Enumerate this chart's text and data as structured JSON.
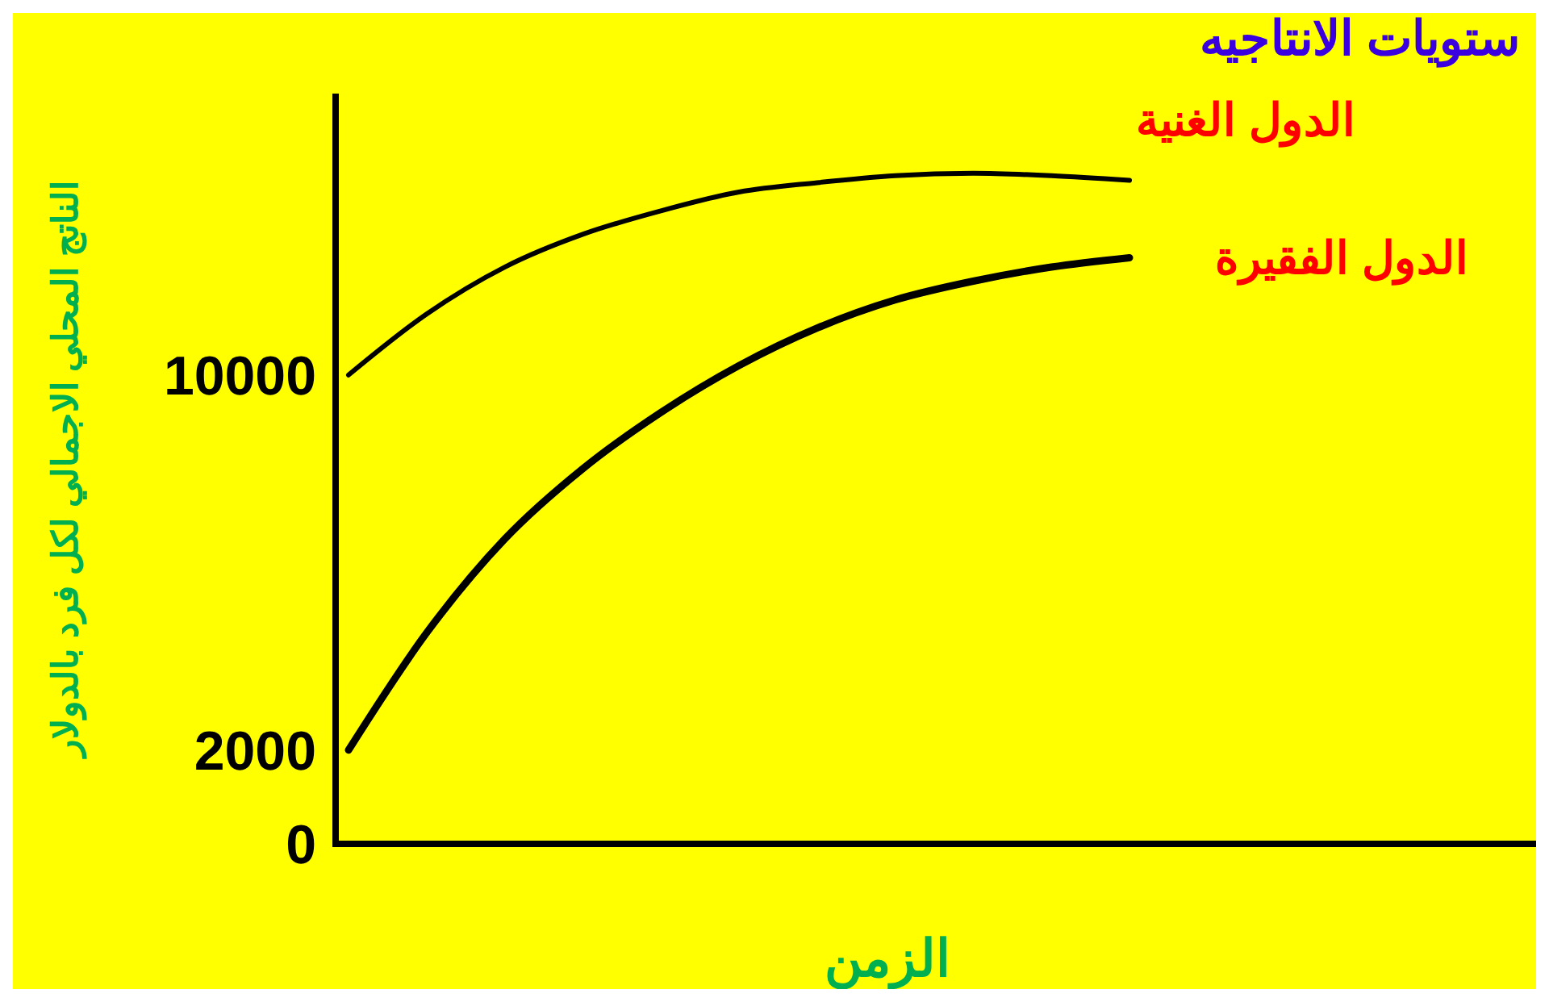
{
  "chart_data": {
    "type": "line",
    "title": "ستويات الانتاجيه",
    "xlabel": "الزمن",
    "ylabel": "الناتج المحلي الاجمالي لكل فرد بالدولار",
    "categories": [
      null,
      null,
      null,
      null,
      null,
      null,
      null,
      null,
      null,
      null,
      null,
      null,
      null,
      null,
      null,
      null
    ],
    "ylim": [
      0,
      16000
    ],
    "yticks": [
      0,
      2000,
      10000
    ],
    "marker": "none",
    "line_style": "solid",
    "grid": false,
    "series": [
      {
        "name": "الدول الغنية",
        "color": "#000000",
        "values": [
          10000,
          11300,
          12300,
          13000,
          13500,
          13900,
          14100,
          14250,
          14300,
          14250,
          14150,
          null,
          null,
          null,
          null,
          null
        ]
      },
      {
        "name": "الدول الفقيرة",
        "color": "#000000",
        "values": [
          2000,
          4500,
          6500,
          8000,
          9200,
          10200,
          11000,
          11600,
          12000,
          12300,
          12500,
          null,
          null,
          null,
          null,
          null
        ]
      }
    ]
  }
}
